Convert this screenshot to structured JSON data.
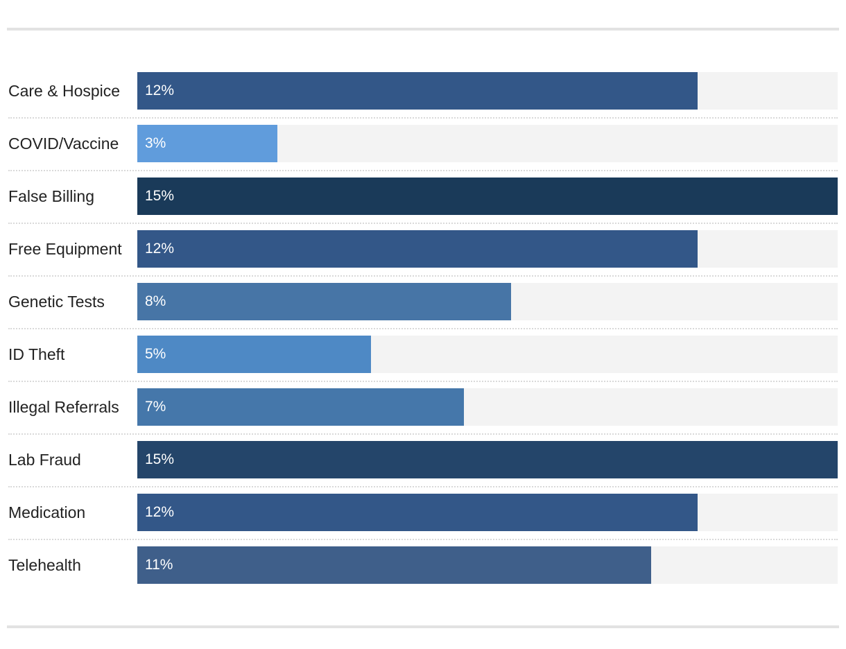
{
  "chart_data": {
    "type": "bar",
    "orientation": "horizontal",
    "title": "",
    "xlabel": "",
    "ylabel": "",
    "xlim": [
      0,
      15
    ],
    "grid": false,
    "legend": "none",
    "categories": [
      "Care & Hospice",
      "COVID/Vaccine",
      "False Billing",
      "Free Equipment",
      "Genetic Tests",
      "ID Theft",
      "Illegal Referrals",
      "Lab Fraud",
      "Medication",
      "Telehealth"
    ],
    "values": [
      12,
      3,
      15,
      12,
      8,
      5,
      7,
      15,
      12,
      11
    ],
    "value_labels": [
      "12%",
      "3%",
      "15%",
      "12%",
      "8%",
      "5%",
      "7%",
      "15%",
      "12%",
      "11%"
    ],
    "bar_colors": [
      "#335788",
      "#609cdc",
      "#1a3a59",
      "#335788",
      "#4775a6",
      "#4e89c5",
      "#4577aa",
      "#24456a",
      "#335788",
      "#3f5f8a"
    ],
    "track_color": "#f3f3f3",
    "label_color": "#222222",
    "value_label_color": "#ffffff"
  }
}
